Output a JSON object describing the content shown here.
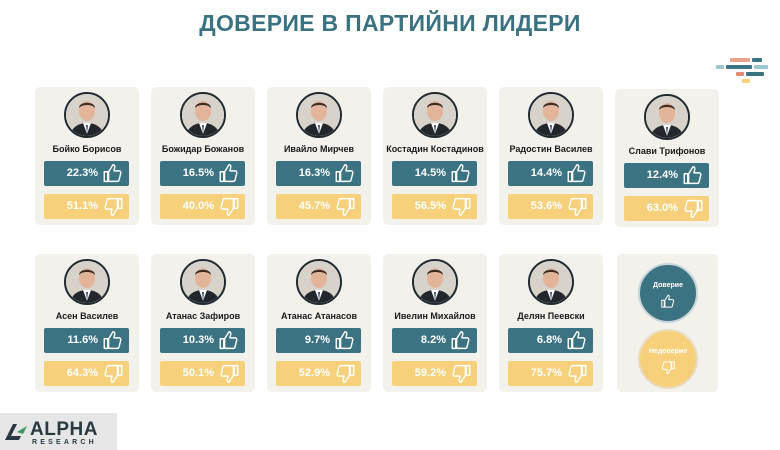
{
  "title": "ДОВЕРИЕ В ПАРТИЙНИ ЛИДЕРИ",
  "colors": {
    "trust": "#3c7383",
    "distrust": "#f6d07b",
    "title": "#3b7281",
    "card": "#f3f1ec"
  },
  "legend": {
    "trust_label": "Доверие",
    "distrust_label": "Недоверие"
  },
  "logo": {
    "name": "ALPHA",
    "sub": "RESEARCH"
  },
  "chart_data": {
    "type": "table",
    "title": "ДОВЕРИЕ В ПАРТИЙНИ ЛИДЕРИ",
    "series": [
      {
        "name": "Доверие",
        "unit": "%"
      },
      {
        "name": "Недоверие",
        "unit": "%"
      }
    ],
    "leaders": [
      {
        "name": "Бойко Борисов",
        "trust": "22.3%",
        "distrust": "51.1%",
        "trust_value": 22.3,
        "distrust_value": 51.1
      },
      {
        "name": "Божидар Божанов",
        "trust": "16.5%",
        "distrust": "40.0%",
        "trust_value": 16.5,
        "distrust_value": 40.0
      },
      {
        "name": "Ивайло Мирчев",
        "trust": "16.3%",
        "distrust": "45.7%",
        "trust_value": 16.3,
        "distrust_value": 45.7
      },
      {
        "name": "Костадин Костадинов",
        "trust": "14.5%",
        "distrust": "56.5%",
        "trust_value": 14.5,
        "distrust_value": 56.5
      },
      {
        "name": "Радостин Василев",
        "trust": "14.4%",
        "distrust": "53.6%",
        "trust_value": 14.4,
        "distrust_value": 53.6
      },
      {
        "name": "Слави Трифонов",
        "trust": "12.4%",
        "distrust": "63.0%",
        "trust_value": 12.4,
        "distrust_value": 63.0
      },
      {
        "name": "Асен Василев",
        "trust": "11.6%",
        "distrust": "64.3%",
        "trust_value": 11.6,
        "distrust_value": 64.3
      },
      {
        "name": "Атанас Зафиров",
        "trust": "10.3%",
        "distrust": "50.1%",
        "trust_value": 10.3,
        "distrust_value": 50.1
      },
      {
        "name": "Атанас Атанасов",
        "trust": "9.7%",
        "distrust": "52.9%",
        "trust_value": 9.7,
        "distrust_value": 52.9
      },
      {
        "name": "Ивелин Михайлов",
        "trust": "8.2%",
        "distrust": "59.2%",
        "trust_value": 8.2,
        "distrust_value": 59.2
      },
      {
        "name": "Делян Пеевски",
        "trust": "6.8%",
        "distrust": "75.7%",
        "trust_value": 6.8,
        "distrust_value": 75.7
      }
    ]
  }
}
